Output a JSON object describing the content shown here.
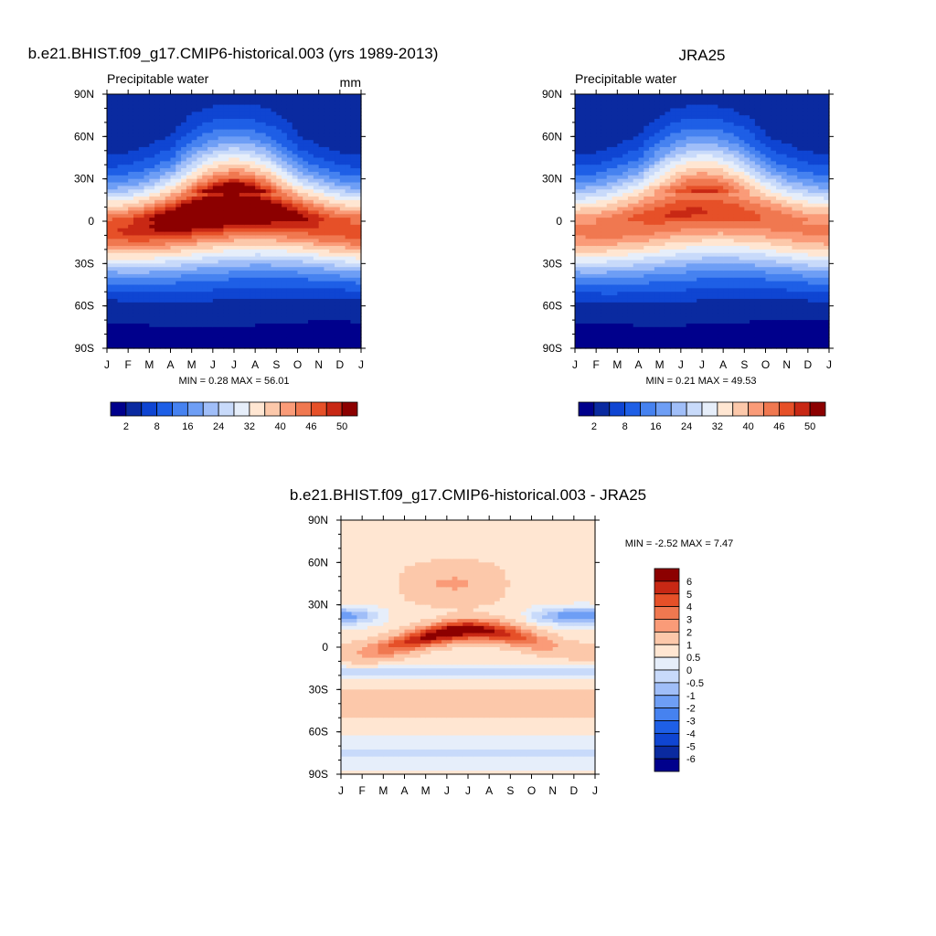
{
  "panels": [
    {
      "id": "model",
      "title": "b.e21.BHIST.f09_g17.CMIP6-historical.003 (yrs 1989-2013)",
      "left_label": "Precipitable water",
      "right_label": "mm",
      "minmax_text": "MIN =   0.28 MAX =  56.01",
      "eq_amp": 9,
      "eq_base": 49,
      "eq_width": 18,
      "pole_n": 3,
      "pole_s": 1.5
    },
    {
      "id": "obs",
      "title": "JRA25",
      "left_label": "Precipitable water",
      "right_label": "",
      "minmax_text": "MIN =   0.21 MAX =  49.53",
      "eq_amp": 5,
      "eq_base": 44,
      "eq_width": 19,
      "pole_n": 2.5,
      "pole_s": 1.2
    },
    {
      "id": "diff",
      "title": "b.e21.BHIST.f09_g17.CMIP6-historical.003 - JRA25",
      "left_label": "",
      "right_label": "",
      "minmax_text": "MIN =  -2.52 MAX =   7.47"
    }
  ],
  "chart_data": [
    {
      "type": "heatmap",
      "title": "b.e21.BHIST.f09_g17.CMIP6-historical.003 (yrs 1989-2013)",
      "variable": "Precipitable water",
      "units": "mm",
      "x_labels": [
        "J",
        "F",
        "M",
        "A",
        "M",
        "J",
        "J",
        "A",
        "S",
        "O",
        "N",
        "D",
        "J"
      ],
      "y_labels": [
        "90N",
        "60N",
        "30N",
        "0",
        "30S",
        "60S",
        "90S"
      ],
      "ylim": [
        -90,
        90
      ],
      "min": 0.28,
      "max": 56.01,
      "levels": [
        2,
        5,
        8,
        12,
        16,
        20,
        24,
        28,
        32,
        36,
        40,
        43,
        46,
        48,
        50
      ],
      "colorbar_labels": [
        "2",
        "8",
        "16",
        "24",
        "32",
        "40",
        "46",
        "50"
      ]
    },
    {
      "type": "heatmap",
      "title": "JRA25",
      "variable": "Precipitable water",
      "x_labels": [
        "J",
        "F",
        "M",
        "A",
        "M",
        "J",
        "J",
        "A",
        "S",
        "O",
        "N",
        "D",
        "J"
      ],
      "y_labels": [
        "90N",
        "60N",
        "30N",
        "0",
        "30S",
        "60S",
        "90S"
      ],
      "ylim": [
        -90,
        90
      ],
      "min": 0.21,
      "max": 49.53,
      "levels": [
        2,
        5,
        8,
        12,
        16,
        20,
        24,
        28,
        32,
        36,
        40,
        43,
        46,
        48,
        50
      ],
      "colorbar_labels": [
        "2",
        "8",
        "16",
        "24",
        "32",
        "40",
        "46",
        "50"
      ]
    },
    {
      "type": "heatmap",
      "title": "b.e21.BHIST.f09_g17.CMIP6-historical.003 - JRA25",
      "x_labels": [
        "J",
        "F",
        "M",
        "A",
        "M",
        "J",
        "J",
        "A",
        "S",
        "O",
        "N",
        "D",
        "J"
      ],
      "y_labels": [
        "90N",
        "60N",
        "30N",
        "0",
        "30S",
        "60S",
        "90S"
      ],
      "ylim": [
        -90,
        90
      ],
      "min": -2.52,
      "max": 7.47,
      "levels": [
        -6,
        -5,
        -4,
        -3,
        -2,
        -1,
        -0.5,
        0,
        0.5,
        1,
        2,
        3,
        4,
        5,
        6
      ],
      "colorbar_labels": [
        "6",
        "5",
        "4",
        "3",
        "2",
        "1",
        "0.5",
        "0",
        "-0.5",
        "-1",
        "-2",
        "-3",
        "-4",
        "-5",
        "-6"
      ]
    }
  ],
  "palette": [
    "#00008c",
    "#0a2aa0",
    "#0f45d2",
    "#1e5fe6",
    "#4682f0",
    "#6e9ef5",
    "#a0bef8",
    "#c8dafa",
    "#e6eefa",
    "#ffe6d2",
    "#fcc8aa",
    "#fa9b78",
    "#f07850",
    "#e65028",
    "#c82814",
    "#8c0000"
  ]
}
